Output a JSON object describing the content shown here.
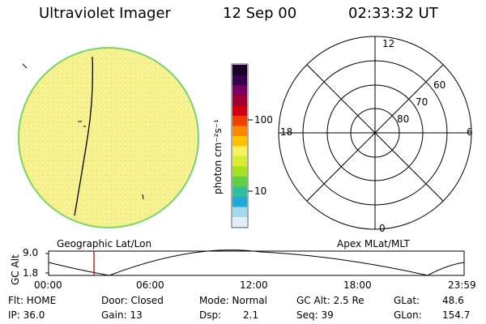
{
  "header": {
    "instrument": "Ultraviolet Imager",
    "date": "12 Sep 00",
    "time": "02:33:32 UT"
  },
  "image_panel": {
    "fill_color": "#f4f08a",
    "speckle_color": "#ffffff",
    "rim_color": "#7ad36b"
  },
  "colorbar": {
    "unit_label": "photon cm⁻²s⁻¹",
    "tick_100": "100",
    "tick_10": "10",
    "colors": [
      "#1a0026",
      "#3a0050",
      "#7a0060",
      "#a00030",
      "#d00010",
      "#f04000",
      "#ff8800",
      "#ffc000",
      "#f4f060",
      "#d8ec30",
      "#a8e020",
      "#60d040",
      "#30c0a0",
      "#20a8d8",
      "#a0d8ec",
      "#e0f0f8"
    ]
  },
  "polar_plot": {
    "mlt_labels": {
      "top": "12",
      "right": "6",
      "bottom": "0",
      "left": "18"
    },
    "lat_labels": [
      "60",
      "70",
      "80"
    ]
  },
  "altitude_plot": {
    "left_title": "Geographic Lat/Lon",
    "right_title": "Apex MLat/MLT",
    "ylabel": "GC Alt",
    "y_top": "9.0",
    "y_bottom": "1.8",
    "x_ticks": [
      "00:00",
      "06:00",
      "12:00",
      "18:00",
      "23:59"
    ],
    "marker_color": "#cc0000"
  },
  "status": {
    "flt": "Flt: HOME",
    "ip": "IP: 36.0",
    "door": "Door: Closed",
    "gain": "Gain: 13",
    "mode": "Mode: Normal",
    "dsp_label": "Dsp:",
    "dsp_value": "2.1",
    "gc_alt": "GC Alt: 2.5 Re",
    "seq": "Seq: 39",
    "glat_label": "GLat:",
    "glat_value": "48.6",
    "glon_label": "GLon:",
    "glon_value": "154.7"
  }
}
